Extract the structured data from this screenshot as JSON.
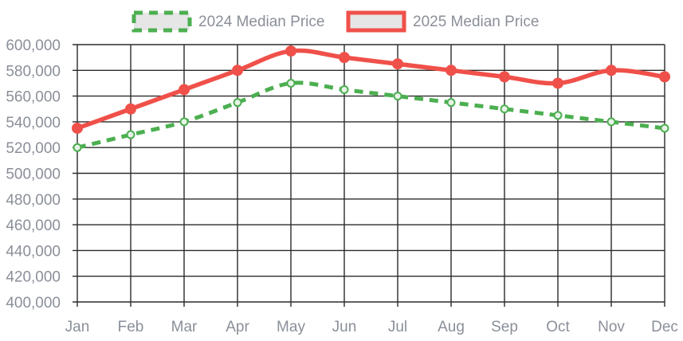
{
  "chart_data": {
    "type": "line",
    "title": "",
    "xlabel": "",
    "ylabel": "",
    "categories": [
      "Jan",
      "Feb",
      "Mar",
      "Apr",
      "May",
      "Jun",
      "Jul",
      "Aug",
      "Sep",
      "Oct",
      "Nov",
      "Dec"
    ],
    "ylim": [
      400000,
      600000
    ],
    "y_ticks": [
      "400,000",
      "420,000",
      "440,000",
      "460,000",
      "480,000",
      "500,000",
      "520,000",
      "540,000",
      "560,000",
      "580,000",
      "600,000"
    ],
    "y_tick_values": [
      400000,
      420000,
      440000,
      460000,
      480000,
      500000,
      520000,
      540000,
      560000,
      580000,
      600000
    ],
    "grid": true,
    "legend_position": "top-center",
    "series": [
      {
        "name": "2024 Median Price",
        "color": "#4caf50",
        "line_style": "dashed",
        "values": [
          520000,
          530000,
          540000,
          555000,
          570000,
          565000,
          560000,
          555000,
          550000,
          545000,
          540000,
          535000
        ]
      },
      {
        "name": "2025 Median Price",
        "color": "#f0504a",
        "line_style": "solid",
        "values": [
          535000,
          550000,
          565000,
          580000,
          595000,
          590000,
          585000,
          580000,
          575000,
          570000,
          580000,
          575000
        ]
      }
    ]
  }
}
